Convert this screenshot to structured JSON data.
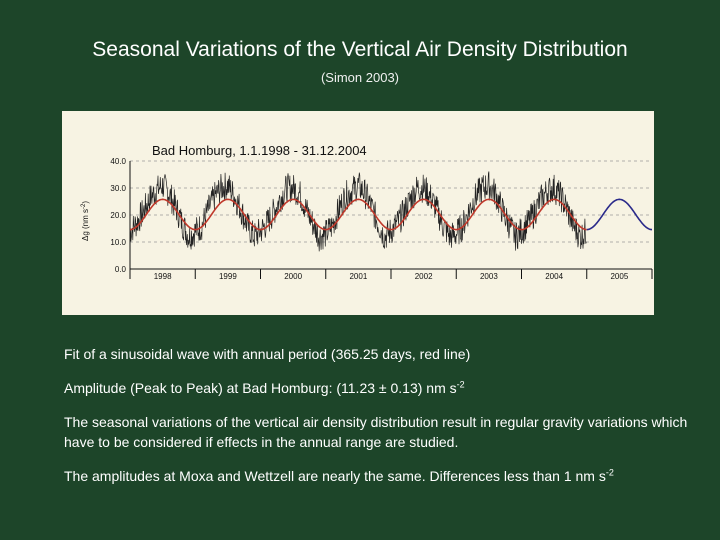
{
  "slide": {
    "title": "Seasonal Variations of the Vertical Air Density Distribution",
    "subtitle": "(Simon 2003)"
  },
  "body": {
    "line1": "Fit of a sinusoidal wave with annual period (365.25 days, red line)",
    "line2_main": "Amplitude (Peak to Peak) at Bad Homburg: (11.23 ± 0.13) nm s",
    "line2_sup": "-2",
    "line3": "The seasonal variations of the vertical air density distribution result in regular gravity variations which have to be considered if effects in the annual range are studied.",
    "line4_main": "The amplitudes at Moxa and Wettzell are nearly the same. Differences less than 1 nm s",
    "line4_sup": "-2"
  },
  "colors": {
    "background": "#1d4529",
    "figure_background": "#f7f3e3",
    "observed_series": "#222222",
    "fit_series": "#c0392b",
    "prediction_series": "#2a2a8a"
  },
  "chart_data": {
    "type": "line",
    "title": "Bad Homburg, 1.1.1998 - 31.12.2004",
    "ylabel_main": "Δg (nm s",
    "ylabel_sup": "-2",
    "ylabel_end": ")",
    "xlim": [
      1998,
      2006
    ],
    "ylim": [
      0,
      40
    ],
    "yticks": [
      0.0,
      10.0,
      20.0,
      30.0,
      40.0
    ],
    "ytick_labels": [
      "0.0",
      "10.0",
      "20.0",
      "30.0",
      "40.0"
    ],
    "xtick_labels": [
      "1998",
      "1999",
      "2000",
      "2001",
      "2002",
      "2003",
      "2004",
      "2005"
    ],
    "xtick_positions": [
      1998,
      1999,
      2000,
      2001,
      2002,
      2003,
      2004,
      2005
    ],
    "grid": "horizontal dashed",
    "series": [
      {
        "role": "observed",
        "x": [
          1998.0,
          1998.1,
          1998.2,
          1998.3,
          1998.4,
          1998.5,
          1998.6,
          1998.7,
          1998.8,
          1998.9,
          1999.0,
          1999.1,
          1999.2,
          1999.3,
          1999.4,
          1999.5,
          1999.6,
          1999.7,
          1999.8,
          1999.9,
          2000.0,
          2000.1,
          2000.2,
          2000.3,
          2000.4,
          2000.5,
          2000.6,
          2000.7,
          2000.8,
          2000.9,
          2001.0,
          2001.1,
          2001.2,
          2001.3,
          2001.4,
          2001.5,
          2001.6,
          2001.7,
          2001.8,
          2001.9,
          2002.0,
          2002.1,
          2002.2,
          2002.3,
          2002.4,
          2002.5,
          2002.6,
          2002.7,
          2002.8,
          2002.9,
          2003.0,
          2003.1,
          2003.2,
          2003.3,
          2003.4,
          2003.5,
          2003.6,
          2003.7,
          2003.8,
          2003.9,
          2004.0,
          2004.1,
          2004.2,
          2004.3,
          2004.4,
          2004.5,
          2004.6,
          2004.7,
          2004.8,
          2004.9,
          2005.0
        ],
        "values": [
          14,
          17,
          21,
          26,
          29,
          31,
          28,
          23,
          17,
          12,
          14,
          16,
          22,
          27,
          30,
          31,
          27,
          22,
          16,
          12,
          14,
          17,
          21,
          26,
          30,
          30,
          28,
          22,
          17,
          12,
          13,
          16,
          22,
          27,
          29,
          31,
          28,
          23,
          17,
          12,
          14,
          17,
          21,
          26,
          30,
          30,
          27,
          22,
          16,
          12,
          13,
          16,
          22,
          27,
          30,
          31,
          28,
          22,
          17,
          12,
          14,
          17,
          21,
          26,
          29,
          30,
          27,
          22,
          16,
          12,
          14
        ]
      },
      {
        "role": "fit",
        "x_start": 1998.0,
        "x_end": 2005.0,
        "mean": 20.2,
        "amplitude": 5.6,
        "period_years": 1.0,
        "peak_at": 0.5
      },
      {
        "role": "prediction",
        "x_start": 2005.0,
        "x_end": 2006.0,
        "mean": 20.2,
        "amplitude": 5.6,
        "period_years": 1.0,
        "peak_at": 0.5
      }
    ]
  }
}
